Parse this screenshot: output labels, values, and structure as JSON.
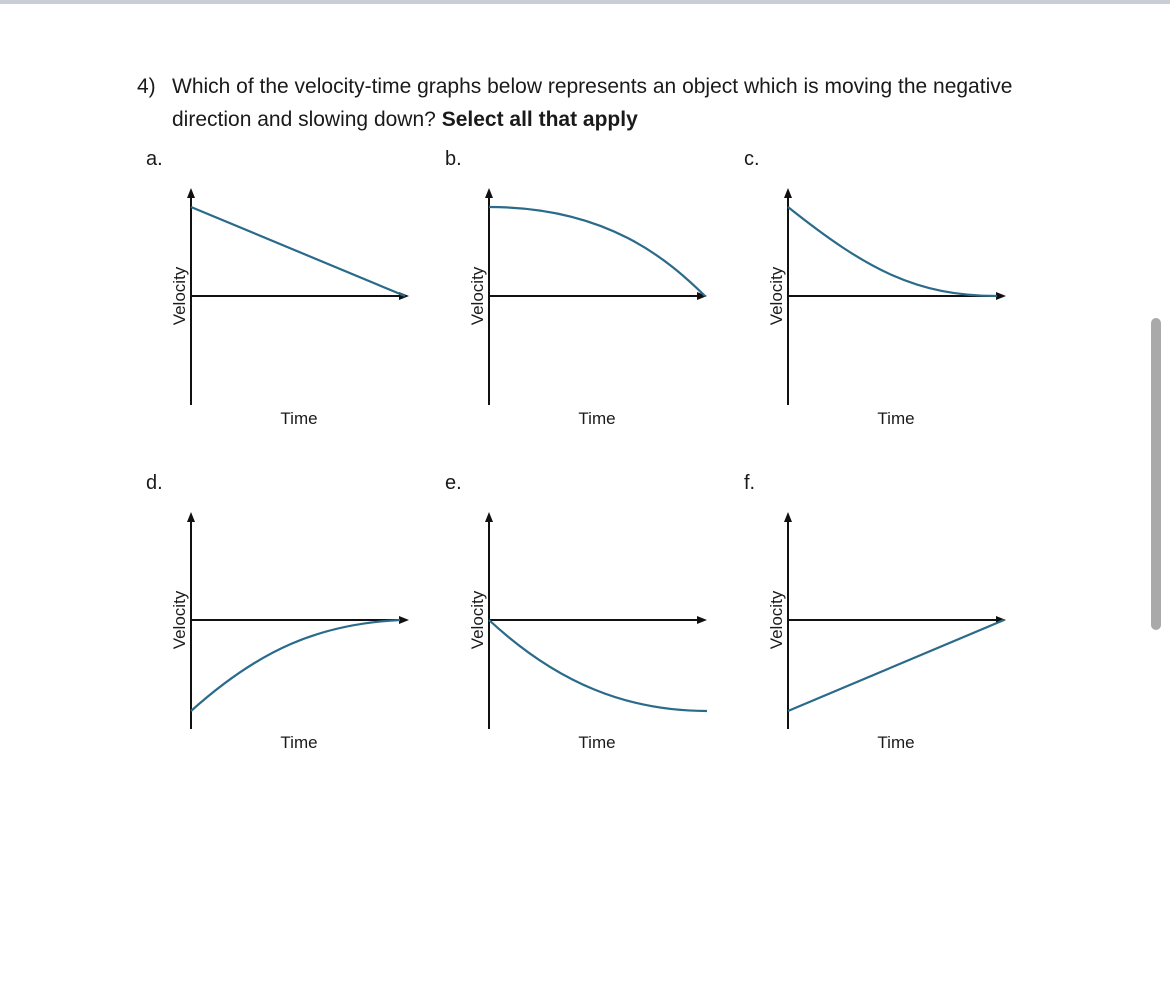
{
  "question": {
    "number": "4)",
    "text": "Which of the velocity-time graphs below represents an object which is moving the negative direction and slowing down?",
    "emphasis": "Select all that apply"
  },
  "options": [
    {
      "label": "a.",
      "ylabel": "Velocity",
      "xlabel": "Time"
    },
    {
      "label": "b.",
      "ylabel": "Velocity",
      "xlabel": "Time"
    },
    {
      "label": "c.",
      "ylabel": "Velocity",
      "xlabel": "Time"
    },
    {
      "label": "d.",
      "ylabel": "Velocity",
      "xlabel": "Time"
    },
    {
      "label": "e.",
      "ylabel": "Velocity",
      "xlabel": "Time"
    },
    {
      "label": "f.",
      "ylabel": "Velocity",
      "xlabel": "Time"
    }
  ],
  "colors": {
    "curve": "#2a6a8a",
    "axis": "#111111"
  }
}
